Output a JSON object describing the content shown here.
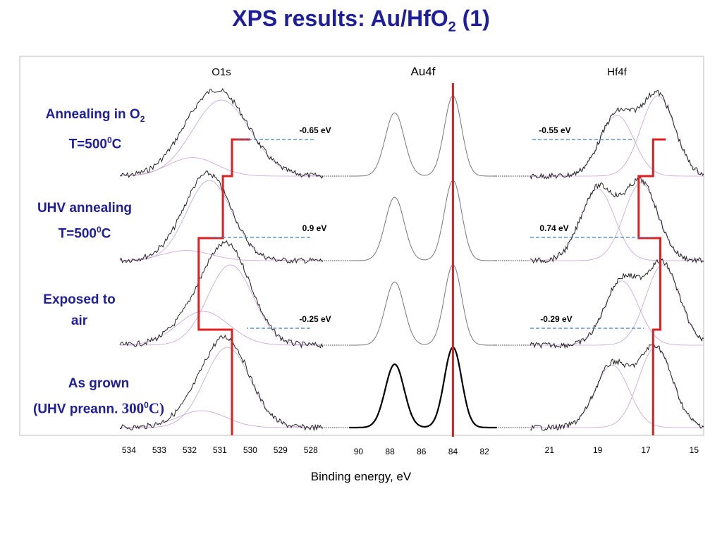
{
  "title": {
    "main": "XPS results: Au/HfO",
    "sub": "2",
    "tail": " (1)"
  },
  "panel_titles": [
    "O1s",
    "Au4f",
    "Hf4f"
  ],
  "row_labels": [
    {
      "l1a": "Annealing in O",
      "l1sub": "2",
      "l2a": "T=500",
      "l2sup": "0",
      "l2b": "C"
    },
    {
      "l1a": "UHV annealing",
      "l1sub": "",
      "l2a": "T=500",
      "l2sup": "0",
      "l2b": "C"
    },
    {
      "l1a": "Exposed to",
      "l1sub": "",
      "l2a": "air",
      "l2sup": "",
      "l2b": ""
    },
    {
      "l1a": "As grown",
      "l1sub": "",
      "l2a": "(UHV preann. ",
      "l2sup": "0",
      "l2b": "C)",
      "l2serif": "300"
    }
  ],
  "x_label": "Binding energy, eV",
  "colors": {
    "title": "#1f1f9e",
    "shift_line": "#e02020",
    "arrow": "#3a7fc4",
    "fit": "#c9a0d6"
  },
  "chart_data": [
    {
      "type": "line",
      "panel": "O1s",
      "x_ticks": [
        534,
        533,
        532,
        531,
        530,
        529,
        528
      ],
      "xlim": [
        534.3,
        527.6
      ],
      "reference_lines_eV": [
        530.6,
        530.9,
        531.7,
        530.6
      ],
      "series": [
        {
          "peaks": [
            [
              530.95,
              0.9,
              0.95
            ],
            [
              531.9,
              0.22,
              0.8
            ]
          ]
        },
        {
          "peaks": [
            [
              531.35,
              0.95,
              0.75
            ],
            [
              532.1,
              0.12,
              0.8
            ]
          ]
        },
        {
          "peaks": [
            [
              530.65,
              0.95,
              0.75
            ],
            [
              531.55,
              0.4,
              0.85
            ]
          ]
        },
        {
          "peaks": [
            [
              530.75,
              0.95,
              0.75
            ],
            [
              531.6,
              0.2,
              0.8
            ]
          ]
        }
      ],
      "annotations": [
        "-0.65 eV",
        "0.9 eV",
        "-0.25 eV"
      ]
    },
    {
      "type": "line",
      "panel": "Au4f",
      "x_ticks": [
        90,
        88,
        86,
        84,
        82
      ],
      "xlim": [
        90.6,
        81.2
      ],
      "reference_lines_eV": [
        84.0
      ],
      "series": [
        {
          "peaks": [
            [
              87.7,
              0.75,
              0.6
            ],
            [
              84.0,
              0.95,
              0.55
            ]
          ]
        },
        {
          "peaks": [
            [
              87.7,
              0.75,
              0.6
            ],
            [
              84.0,
              0.95,
              0.55
            ]
          ]
        },
        {
          "peaks": [
            [
              87.7,
              0.75,
              0.6
            ],
            [
              84.0,
              0.95,
              0.55
            ]
          ]
        },
        {
          "peaks": [
            [
              87.7,
              0.75,
              0.6
            ],
            [
              84.0,
              0.95,
              0.55
            ]
          ]
        }
      ]
    },
    {
      "type": "line",
      "panel": "Hf4f",
      "x_ticks": [
        21,
        19,
        17,
        15
      ],
      "xlim": [
        21.8,
        14.6
      ],
      "reference_lines_eV": [
        16.7,
        17.3,
        16.4,
        16.7
      ],
      "series": [
        {
          "peaks": [
            [
              16.5,
              0.95,
              0.7
            ],
            [
              18.2,
              0.72,
              0.7
            ]
          ]
        },
        {
          "peaks": [
            [
              17.2,
              0.92,
              0.7
            ],
            [
              19.0,
              0.85,
              0.7
            ]
          ]
        },
        {
          "peaks": [
            [
              16.3,
              0.95,
              0.7
            ],
            [
              18.0,
              0.76,
              0.7
            ]
          ]
        },
        {
          "peaks": [
            [
              16.6,
              0.95,
              0.7
            ],
            [
              18.4,
              0.74,
              0.7
            ]
          ]
        }
      ],
      "annotations": [
        "-0.55 eV",
        "0.74 eV",
        "-0.29 eV"
      ]
    }
  ]
}
